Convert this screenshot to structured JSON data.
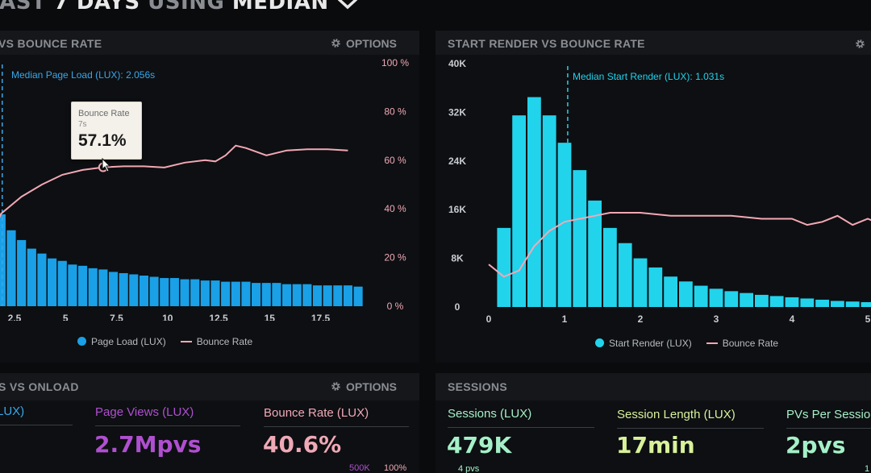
{
  "header": {
    "title_dim": "LAST ",
    "title_main": "7 DAYS",
    "title_dim2": " USING ",
    "title_main2": "MEDIAN"
  },
  "panel_left": {
    "title": "VS BOUNCE RATE",
    "options_label": "OPTIONS",
    "median_label": "Median Page Load (LUX): 2.056s",
    "tooltip": {
      "series": "Bounce Rate",
      "x": "7s",
      "value": "57.1%"
    },
    "legend": {
      "bars": "Page Load (LUX)",
      "line": "Bounce Rate"
    }
  },
  "panel_right": {
    "title": "START RENDER VS BOUNCE RATE",
    "median_label": "Median Start Render (LUX): 1.031s",
    "legend": {
      "bars": "Start Render (LUX)",
      "line": "Bounce Rate"
    }
  },
  "panel_bottom_left": {
    "title": "S VS ONLOAD",
    "options_label": "OPTIONS",
    "metrics": [
      {
        "label": "LUX)",
        "value": ""
      },
      {
        "label": "Page Views (LUX)",
        "value": "2.7Mpvs"
      },
      {
        "label": "Bounce Rate (LUX)",
        "value": "40.6%"
      }
    ],
    "axis_right": [
      "500K",
      "100%"
    ]
  },
  "panel_bottom_right": {
    "title": "SESSIONS",
    "metrics": [
      {
        "label": "Sessions (LUX)",
        "value": "479K",
        "sub": "4 pvs"
      },
      {
        "label": "Session Length (LUX)",
        "value": "17min"
      },
      {
        "label": "PVs Per Sessio",
        "value": "2pvs",
        "sub": "1"
      }
    ]
  },
  "colors": {
    "bar_blue": "#1aa0e6",
    "bar_cyan": "#22d3ec",
    "bounce_line": "#f3a8b4",
    "pink_text": "#f0a9b6",
    "purple_text": "#b04fd0",
    "green_text": "#a5f0c8",
    "lime_text": "#d8f29a",
    "blue_text": "#3aa7ea"
  },
  "chart_data": [
    {
      "type": "bar",
      "x_ticks": [
        "2.5",
        "5",
        "7.5",
        "10",
        "12.5",
        "15",
        "17.5"
      ],
      "y2_ticks": [
        "100 %",
        "80 %",
        "60 %",
        "40 %",
        "20 %",
        "0 %"
      ],
      "y2lim": [
        0,
        100
      ],
      "x_start": 1.5,
      "x_step": 0.5,
      "series": [
        {
          "name": "Page Load (LUX)",
          "kind": "bar",
          "values": [
            100,
            75,
            62,
            54,
            47,
            43,
            39,
            37,
            34,
            33,
            31,
            30,
            28,
            27,
            26,
            25,
            24,
            23,
            23,
            22,
            22,
            21,
            21,
            20,
            20,
            20,
            19,
            19,
            19,
            18,
            18,
            18,
            17,
            17,
            17,
            17,
            16
          ]
        },
        {
          "name": "Bounce Rate",
          "kind": "line",
          "x": [
            1.5,
            2,
            3,
            4,
            5,
            6,
            7,
            8,
            9,
            10,
            11,
            12,
            12.5,
            13,
            13.5,
            14,
            15,
            16,
            17,
            18,
            19
          ],
          "values": [
            28,
            38,
            45,
            50,
            54,
            56,
            57.1,
            57.5,
            57.5,
            57,
            59,
            60,
            59.5,
            62,
            66,
            65,
            62,
            64,
            64.5,
            64.5,
            64
          ]
        }
      ],
      "annotation": {
        "median_x": 2.056
      }
    },
    {
      "type": "bar",
      "x_ticks": [
        "0",
        "1",
        "2",
        "3",
        "4",
        "5"
      ],
      "y_ticks": [
        "40K",
        "32K",
        "24K",
        "16K",
        "8K",
        "0"
      ],
      "ylim": [
        0,
        40000
      ],
      "x_start": 0.2,
      "x_step": 0.2,
      "series": [
        {
          "name": "Start Render (LUX)",
          "kind": "bar",
          "values": [
            13000,
            31500,
            34500,
            31500,
            27000,
            22500,
            17500,
            13000,
            10500,
            8000,
            6500,
            5000,
            4200,
            3500,
            3000,
            2600,
            2300,
            2000,
            1800,
            1600,
            1400,
            1200,
            1000,
            900,
            800
          ]
        },
        {
          "name": "Bounce Rate",
          "kind": "line",
          "x": [
            0,
            0.2,
            0.4,
            0.6,
            0.8,
            1,
            1.2,
            1.4,
            1.6,
            1.8,
            2,
            2.4,
            2.8,
            3.2,
            3.6,
            4,
            4.2,
            4.4,
            4.6,
            4.8,
            5,
            5.2
          ],
          "values": [
            7000,
            5000,
            6000,
            10000,
            12500,
            14000,
            14500,
            15000,
            15500,
            15500,
            15500,
            15000,
            15000,
            15000,
            14500,
            14500,
            13500,
            14000,
            15000,
            13500,
            14500,
            13500
          ]
        }
      ],
      "annotation": {
        "median_x": 1.031
      }
    }
  ]
}
